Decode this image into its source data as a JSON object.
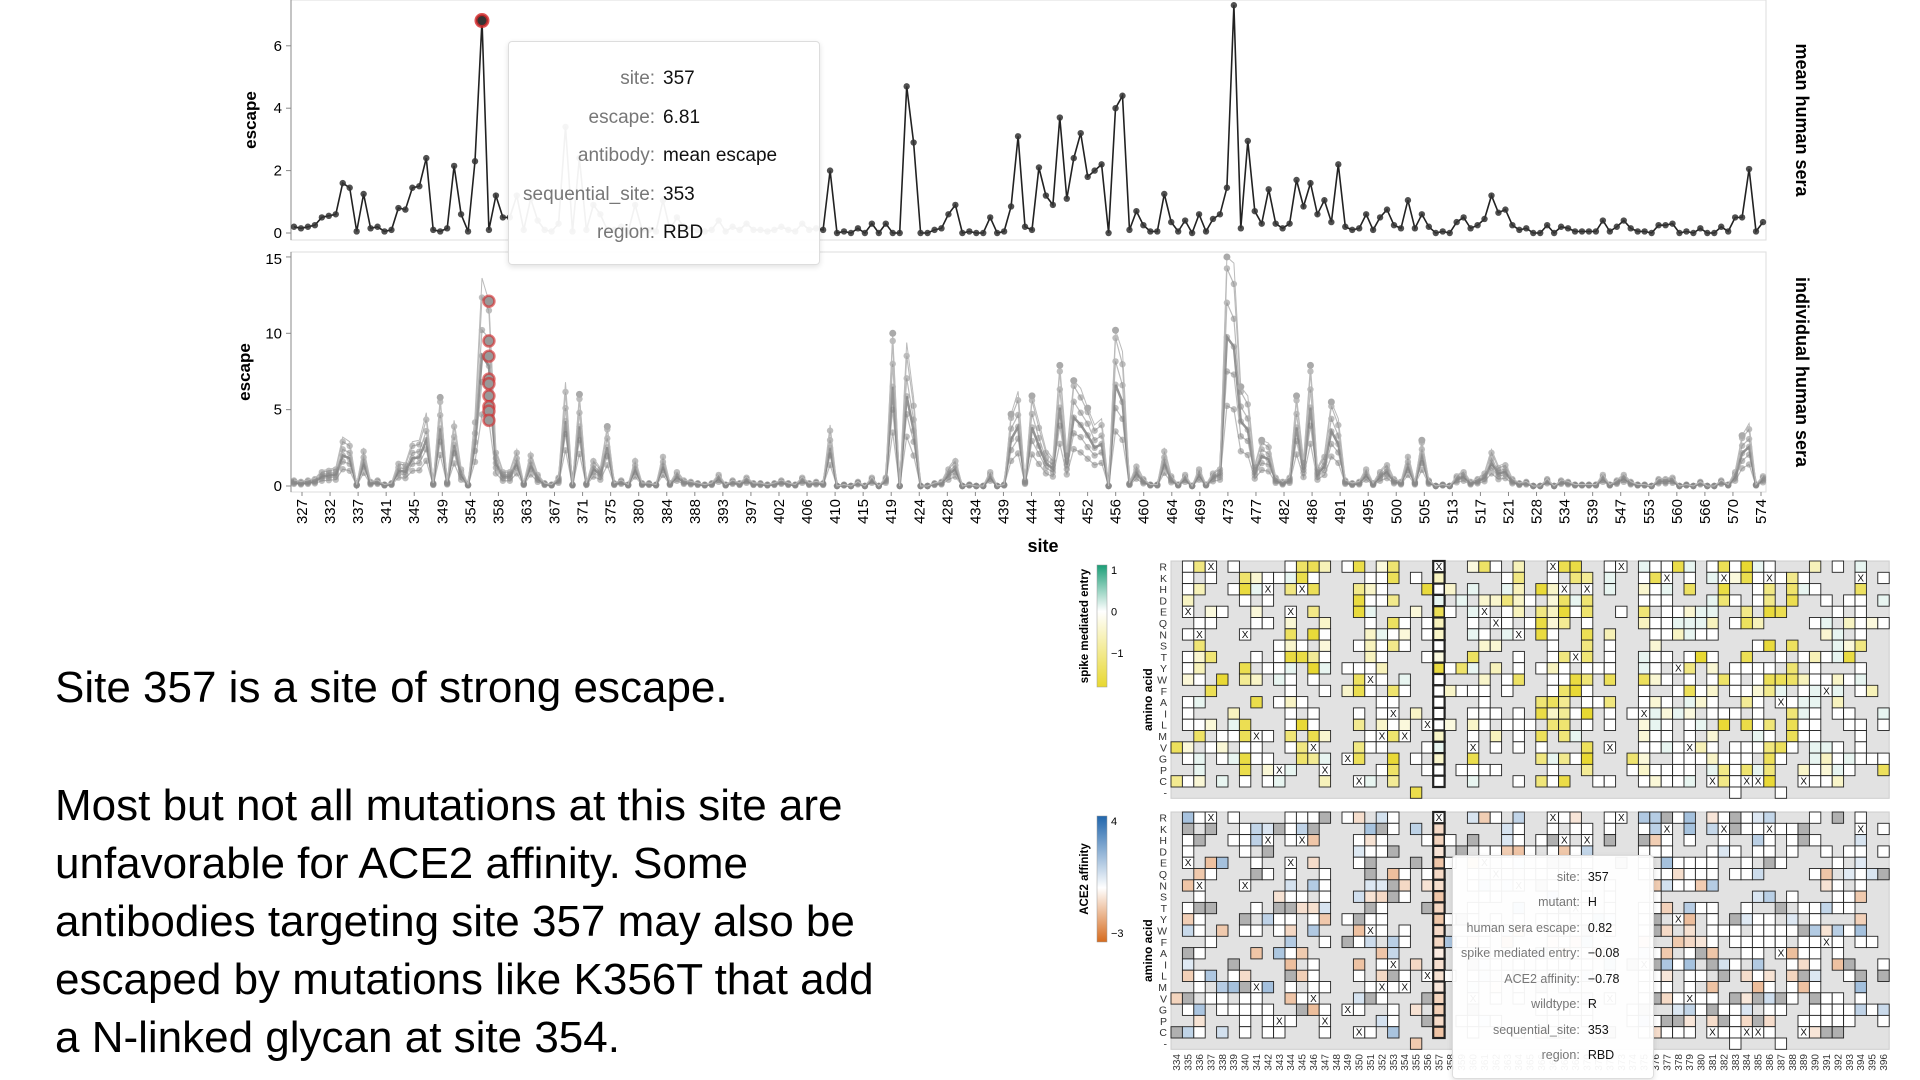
{
  "slide_text": {
    "headline": "Site 357 is a site of strong escape.",
    "paragraph_lines": [
      "Most but not all mutations at this site are",
      "unfavorable for ACE2 affinity. Some",
      "antibodies targeting site 357 may also be",
      "escaped by mutations like K356T that add",
      "a N-linked glycan at site 354."
    ]
  },
  "tooltip_line": {
    "rows": [
      {
        "key": "site:",
        "value": "357"
      },
      {
        "key": "escape:",
        "value": "6.81"
      },
      {
        "key": "antibody:",
        "value": "mean escape"
      },
      {
        "key": "sequential_site:",
        "value": "353"
      },
      {
        "key": "region:",
        "value": "RBD"
      }
    ]
  },
  "tooltip_heatmap": {
    "rows": [
      {
        "key": "site:",
        "value": "357"
      },
      {
        "key": "mutant:",
        "value": "H"
      },
      {
        "key": "human sera escape:",
        "value": "0.82"
      },
      {
        "key": "spike mediated entry:",
        "value": "−0.08"
      },
      {
        "key": "ACE2 affinity:",
        "value": "−0.78"
      },
      {
        "key": "wildtype:",
        "value": "R"
      },
      {
        "key": "sequential_site:",
        "value": "353"
      },
      {
        "key": "region:",
        "value": "RBD"
      }
    ]
  },
  "chart_data": [
    {
      "type": "line",
      "facet_label": "mean human sera",
      "ylabel": "escape",
      "ylim": [
        0,
        7.5
      ],
      "yticks": [
        "0",
        "2",
        "4",
        "6"
      ],
      "line_color": "#222222",
      "highlight_color": "#d62728",
      "highlighted_point": {
        "site": "357",
        "escape": 6.81
      },
      "series": [
        {
          "values": [
            0.2,
            0.15,
            0.2,
            0.25,
            0.5,
            0.55,
            0.6,
            1.6,
            1.45,
            0.05,
            1.25,
            0.15,
            0.2,
            0.05,
            0.1,
            0.8,
            0.75,
            1.45,
            1.5,
            2.4,
            0.1,
            0.05,
            0.15,
            2.15,
            0.6,
            0.05,
            2.3,
            6.81,
            0.1,
            1.2,
            0.5,
            0.5,
            1.2,
            0.1,
            1.1,
            0.4,
            0.1,
            0.05,
            0.3,
            3.4,
            0.05,
            2.4,
            0.1,
            0.9,
            0.6,
            0.1,
            0.1,
            0.2,
            0.05,
            0.9,
            0.1,
            0.1,
            0.05,
            1.05,
            0.1,
            0.5,
            0.2,
            0.15,
            0.1,
            0.05,
            0.1,
            0.4,
            0.05,
            0.2,
            0.1,
            0.3,
            0.1,
            0.1,
            0.05,
            0.1,
            0.2,
            0.1,
            0.05,
            0.3,
            0.1,
            0.15,
            0.1,
            2.0,
            0.0,
            0.05,
            0.0,
            0.15,
            0.0,
            0.3,
            0.0,
            0.3,
            0.0,
            0.0,
            4.7,
            2.9,
            0.0,
            0.0,
            0.1,
            0.15,
            0.6,
            0.9,
            0.0,
            0.05,
            0.0,
            0.0,
            0.5,
            0.0,
            0.05,
            0.85,
            3.1,
            0.2,
            0.1,
            2.1,
            1.2,
            0.9,
            3.7,
            1.1,
            2.4,
            3.2,
            1.8,
            2.0,
            2.2,
            0.0,
            4.0,
            4.4,
            0.1,
            0.7,
            0.25,
            0.05,
            0.05,
            1.25,
            0.35,
            0.05,
            0.4,
            0.0,
            0.6,
            0.05,
            0.45,
            0.6,
            1.45,
            7.3,
            0.15,
            2.95,
            0.7,
            0.3,
            1.4,
            0.3,
            0.15,
            0.3,
            1.7,
            0.85,
            1.6,
            0.6,
            1.05,
            0.35,
            2.2,
            0.2,
            0.1,
            0.15,
            0.6,
            0.1,
            0.5,
            0.75,
            0.25,
            0.15,
            1.05,
            0.15,
            0.6,
            0.2,
            0.0,
            0.05,
            0.0,
            0.35,
            0.5,
            0.15,
            0.25,
            0.45,
            1.2,
            0.65,
            0.75,
            0.25,
            0.1,
            0.15,
            0.0,
            0.0,
            0.25,
            0.0,
            0.2,
            0.15,
            0.05,
            0.05,
            0.05,
            0.05,
            0.4,
            0.05,
            0.2,
            0.4,
            0.15,
            0.05,
            0.05,
            0.0,
            0.25,
            0.25,
            0.3,
            0.0,
            0.05,
            0.0,
            0.15,
            0.0,
            0.0,
            0.2,
            0.05,
            0.5,
            0.5,
            2.05,
            0.05,
            0.35
          ]
        }
      ]
    },
    {
      "type": "line",
      "facet_label": "individual human sera",
      "ylabel": "escape",
      "xlabel": "site",
      "ylim": [
        0,
        15
      ],
      "yticks": [
        "0",
        "5",
        "10",
        "15"
      ],
      "xticks": [
        "327",
        "332",
        "337",
        "341",
        "345",
        "349",
        "354",
        "358",
        "363",
        "367",
        "371",
        "375",
        "380",
        "384",
        "388",
        "393",
        "397",
        "402",
        "406",
        "410",
        "415",
        "419",
        "424",
        "428",
        "434",
        "439",
        "444",
        "448",
        "452",
        "456",
        "460",
        "464",
        "469",
        "473",
        "477",
        "482",
        "486",
        "491",
        "495",
        "500",
        "505",
        "513",
        "517",
        "521",
        "528",
        "534",
        "539",
        "547",
        "553",
        "560",
        "566",
        "570",
        "574"
      ],
      "line_color": "#8c8c8c",
      "highlight_color": "#d62728",
      "max_individual_peaks": [
        {
          "site": 349,
          "escape": 5.8
        },
        {
          "site": 357,
          "escape": 12.1
        },
        {
          "site": 371,
          "escape": 6.0
        },
        {
          "site": 375,
          "escape": 3.9
        },
        {
          "site": 419,
          "escape": 10.0
        },
        {
          "site": 440,
          "escape": 4.7
        },
        {
          "site": 444,
          "escape": 5.9
        },
        {
          "site": 448,
          "escape": 7.9
        },
        {
          "site": 450,
          "escape": 6.9
        },
        {
          "site": 452,
          "escape": 5.1
        },
        {
          "site": 456,
          "escape": 10.2
        },
        {
          "site": 473,
          "escape": 15.0
        },
        {
          "site": 475,
          "escape": 6.5
        },
        {
          "site": 478,
          "escape": 3.0
        },
        {
          "site": 484,
          "escape": 5.9
        },
        {
          "site": 486,
          "escape": 7.9
        },
        {
          "site": 490,
          "escape": 5.5
        },
        {
          "site": 505,
          "escape": 3.0
        },
        {
          "site": 571,
          "escape": 3.3
        }
      ],
      "highlighted_site": "357",
      "highlighted_values": [
        12.1,
        9.5,
        8.5,
        7.0,
        6.7,
        5.9,
        5.2,
        4.9,
        4.3
      ]
    },
    {
      "type": "heatmap",
      "ylabel": "amino acid",
      "amino_acids": [
        "R",
        "K",
        "H",
        "D",
        "E",
        "Q",
        "N",
        "S",
        "T",
        "Y",
        "W",
        "F",
        "A",
        "I",
        "L",
        "M",
        "V",
        "G",
        "P",
        "C",
        "-"
      ],
      "sites": [
        "334",
        "335",
        "336",
        "337",
        "338",
        "339",
        "340",
        "341",
        "342",
        "343",
        "344",
        "345",
        "346",
        "347",
        "348",
        "349",
        "350",
        "351",
        "352",
        "353",
        "354",
        "355",
        "356",
        "357",
        "358",
        "359",
        "360",
        "361",
        "362",
        "363",
        "364",
        "365",
        "366",
        "367",
        "368",
        "369",
        "370",
        "371",
        "372",
        "373",
        "374",
        "375",
        "376",
        "377",
        "378",
        "379",
        "380",
        "381",
        "382",
        "383",
        "384",
        "385",
        "386",
        "387",
        "388",
        "389",
        "390",
        "391",
        "392",
        "393",
        "394",
        "395",
        "396"
      ],
      "highlighted_site": "357",
      "wildtype_mark": "X",
      "panels": [
        {
          "legend_title": "spike mediated entry",
          "legend_ticks": [
            "1",
            "0",
            "−1"
          ],
          "colors": {
            "high": "#1b9e77",
            "mid": "#ffffff",
            "low": "#e8d830"
          }
        },
        {
          "legend_title": "ACE2 affinity",
          "legend_ticks": [
            "4",
            "−3"
          ],
          "colors": {
            "high": "#2166ac",
            "mid": "#ffffff",
            "low": "#d66b1e"
          }
        }
      ],
      "background": "#e2e2e2"
    }
  ]
}
